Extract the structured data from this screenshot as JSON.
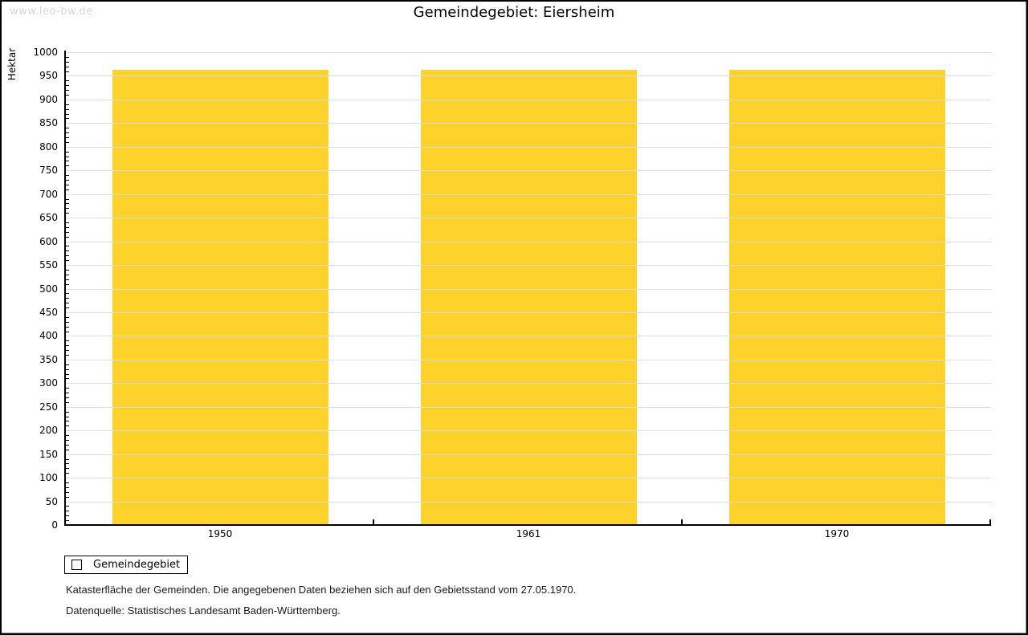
{
  "watermark": "www.leo-bw.de",
  "title": "Gemeindegebiet: Eiersheim",
  "chart_data": {
    "type": "bar",
    "title": "Gemeindegebiet: Eiersheim",
    "categories": [
      "1950",
      "1961",
      "1970"
    ],
    "series": [
      {
        "name": "Gemeindegebiet",
        "values": [
          962,
          962,
          962
        ],
        "color": "#FDD32B"
      }
    ],
    "xlabel": "",
    "ylabel": "Hektar",
    "ylim": [
      0,
      1000
    ],
    "ytick_major": 50,
    "ytick_minor": 10,
    "grid": true,
    "gridline_color": "#DDDDDD",
    "bar_width_fraction": 0.7,
    "legend_position": "bottom-left"
  },
  "legend": {
    "items": [
      {
        "label": "Gemeindegebiet",
        "color": "#FDD32B"
      }
    ]
  },
  "footer": {
    "line1": "Katasterfläche der Gemeinden. Die angegebenen Daten beziehen sich auf den Gebietsstand vom 27.05.1970.",
    "line2": "Datenquelle: Statistisches Landesamt Baden-Württemberg."
  }
}
